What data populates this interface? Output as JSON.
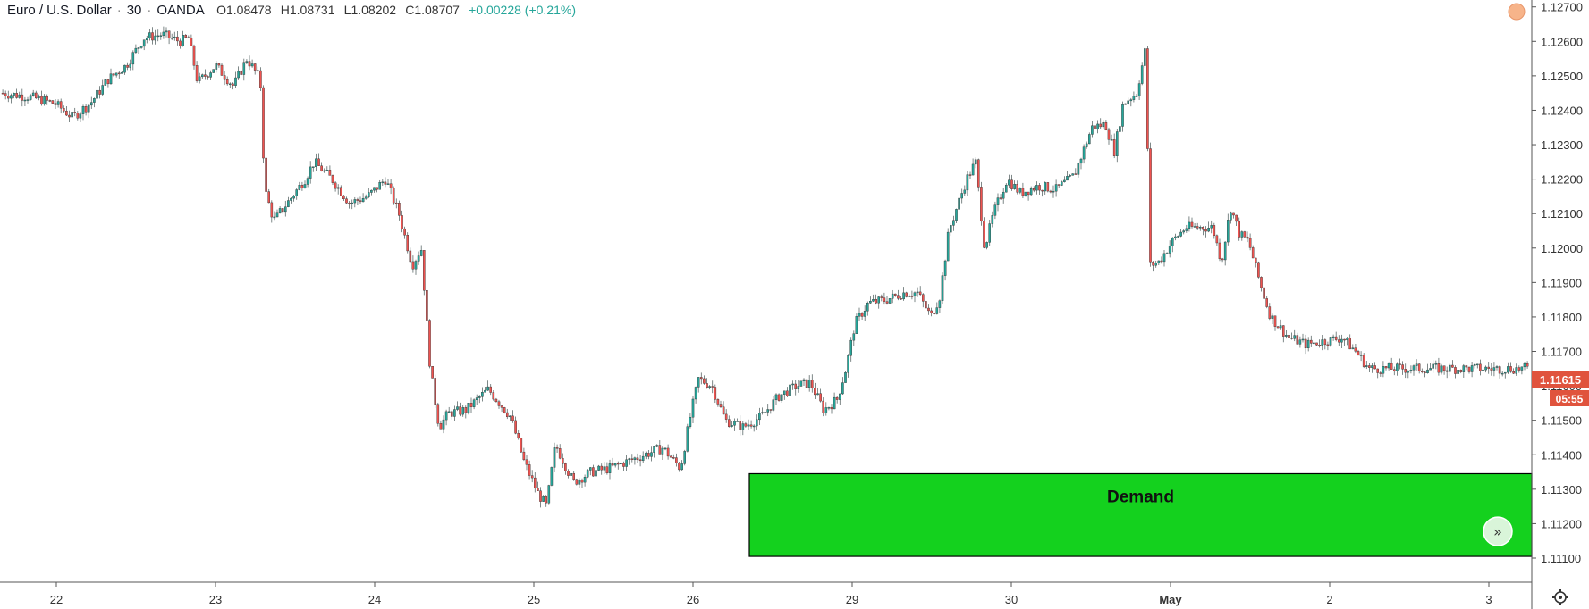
{
  "header": {
    "symbol": "Euro / U.S. Dollar",
    "interval": "30",
    "source": "OANDA",
    "open": "O1.08478",
    "high": "H1.08731",
    "low": "L1.08202",
    "close": "C1.08707",
    "change": "+0.00228 (+0.21%)"
  },
  "colors": {
    "up": "#26a69a",
    "down": "#ef5350",
    "demand_fill": "#14d11e",
    "price_badge": "#e0533d"
  },
  "price_badge": {
    "price": "1.11615",
    "countdown": "05:55"
  },
  "zone": {
    "label": "Demand",
    "top": 1.11345,
    "bottom": 1.11105
  },
  "chart_data": {
    "type": "candlestick",
    "y_ticks": [
      "1.12700",
      "1.12600",
      "1.12500",
      "1.12400",
      "1.12300",
      "1.12200",
      "1.12100",
      "1.12000",
      "1.11900",
      "1.11800",
      "1.11700",
      "1.11600",
      "1.11500",
      "1.11400",
      "1.11300",
      "1.11200",
      "1.11100"
    ],
    "ylim": [
      1.1103,
      1.1272
    ],
    "x_ticks": [
      "22",
      "23",
      "24",
      "25",
      "26",
      "29",
      "30",
      "May",
      "2",
      "3"
    ],
    "path": [
      [
        0,
        1.1245
      ],
      [
        30,
        1.1244
      ],
      [
        60,
        1.1242
      ],
      [
        80,
        1.1238
      ],
      [
        100,
        1.1242
      ],
      [
        120,
        1.1249
      ],
      [
        140,
        1.1253
      ],
      [
        160,
        1.1261
      ],
      [
        180,
        1.1262
      ],
      [
        200,
        1.126
      ],
      [
        210,
        1.1261
      ],
      [
        220,
        1.1248
      ],
      [
        240,
        1.1253
      ],
      [
        260,
        1.1247
      ],
      [
        275,
        1.1255
      ],
      [
        290,
        1.1249
      ],
      [
        295,
        1.1217
      ],
      [
        305,
        1.1208
      ],
      [
        320,
        1.1213
      ],
      [
        340,
        1.122
      ],
      [
        350,
        1.1225
      ],
      [
        370,
        1.122
      ],
      [
        390,
        1.1213
      ],
      [
        410,
        1.1215
      ],
      [
        430,
        1.122
      ],
      [
        445,
        1.121
      ],
      [
        460,
        1.1195
      ],
      [
        470,
        1.12
      ],
      [
        480,
        1.1165
      ],
      [
        490,
        1.1148
      ],
      [
        500,
        1.1152
      ],
      [
        520,
        1.1153
      ],
      [
        545,
        1.1159
      ],
      [
        570,
        1.1151
      ],
      [
        585,
        1.1138
      ],
      [
        600,
        1.1129
      ],
      [
        610,
        1.1125
      ],
      [
        620,
        1.1143
      ],
      [
        640,
        1.1132
      ],
      [
        660,
        1.1135
      ],
      [
        680,
        1.1136
      ],
      [
        700,
        1.1138
      ],
      [
        720,
        1.114
      ],
      [
        740,
        1.1142
      ],
      [
        760,
        1.1136
      ],
      [
        770,
        1.115
      ],
      [
        780,
        1.1162
      ],
      [
        795,
        1.116
      ],
      [
        810,
        1.115
      ],
      [
        830,
        1.1148
      ],
      [
        850,
        1.1151
      ],
      [
        870,
        1.1157
      ],
      [
        890,
        1.116
      ],
      [
        905,
        1.1161
      ],
      [
        920,
        1.1153
      ],
      [
        935,
        1.1156
      ],
      [
        945,
        1.1165
      ],
      [
        955,
        1.1178
      ],
      [
        970,
        1.1184
      ],
      [
        990,
        1.1185
      ],
      [
        1010,
        1.1187
      ],
      [
        1025,
        1.1187
      ],
      [
        1040,
        1.118
      ],
      [
        1050,
        1.1186
      ],
      [
        1060,
        1.1205
      ],
      [
        1080,
        1.122
      ],
      [
        1090,
        1.1225
      ],
      [
        1100,
        1.12
      ],
      [
        1110,
        1.121
      ],
      [
        1125,
        1.122
      ],
      [
        1140,
        1.1216
      ],
      [
        1160,
        1.1218
      ],
      [
        1180,
        1.1217
      ],
      [
        1200,
        1.1221
      ],
      [
        1210,
        1.1228
      ],
      [
        1220,
        1.1235
      ],
      [
        1235,
        1.1236
      ],
      [
        1245,
        1.1228
      ],
      [
        1255,
        1.1242
      ],
      [
        1270,
        1.1245
      ],
      [
        1280,
        1.1258
      ],
      [
        1285,
        1.1195
      ],
      [
        1295,
        1.1196
      ],
      [
        1310,
        1.1202
      ],
      [
        1325,
        1.1206
      ],
      [
        1340,
        1.1206
      ],
      [
        1355,
        1.1206
      ],
      [
        1365,
        1.1196
      ],
      [
        1375,
        1.1212
      ],
      [
        1385,
        1.1204
      ],
      [
        1395,
        1.1202
      ],
      [
        1410,
        1.1188
      ],
      [
        1420,
        1.118
      ],
      [
        1440,
        1.1174
      ],
      [
        1460,
        1.1172
      ],
      [
        1480,
        1.1173
      ],
      [
        1500,
        1.1174
      ],
      [
        1515,
        1.117
      ],
      [
        1530,
        1.1165
      ]
    ]
  }
}
